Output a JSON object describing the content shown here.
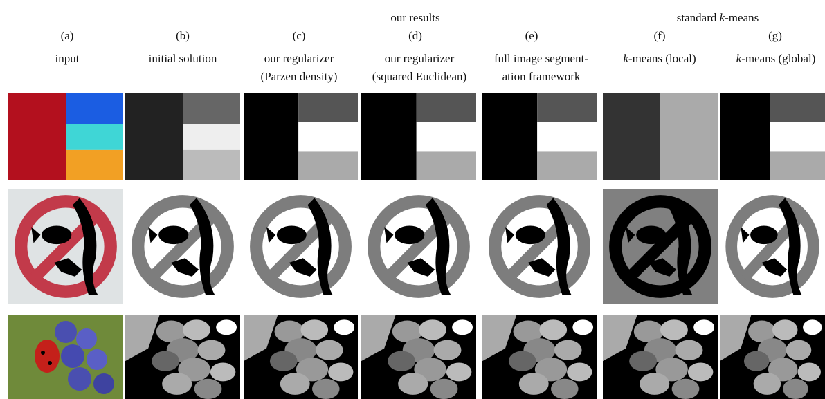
{
  "group_headers": [
    {
      "text": "our results"
    },
    {
      "parts": [
        "standard ",
        "k",
        "-means"
      ]
    }
  ],
  "columns": [
    {
      "label": "(a)",
      "lines": [
        "input"
      ]
    },
    {
      "label": "(b)",
      "lines": [
        "initial solution"
      ]
    },
    {
      "label": "(c)",
      "lines": [
        "our regularizer",
        "(Parzen density)"
      ]
    },
    {
      "label": "(d)",
      "lines": [
        "our regularizer",
        "(squared Euclidean)"
      ]
    },
    {
      "label": "(e)",
      "lines": [
        "full image segment-",
        "ation framework"
      ]
    },
    {
      "label": "(f)",
      "parts": [
        "k",
        "-means (local)"
      ]
    },
    {
      "label": "(g)",
      "parts": [
        "k",
        "-means (global)"
      ]
    }
  ]
}
